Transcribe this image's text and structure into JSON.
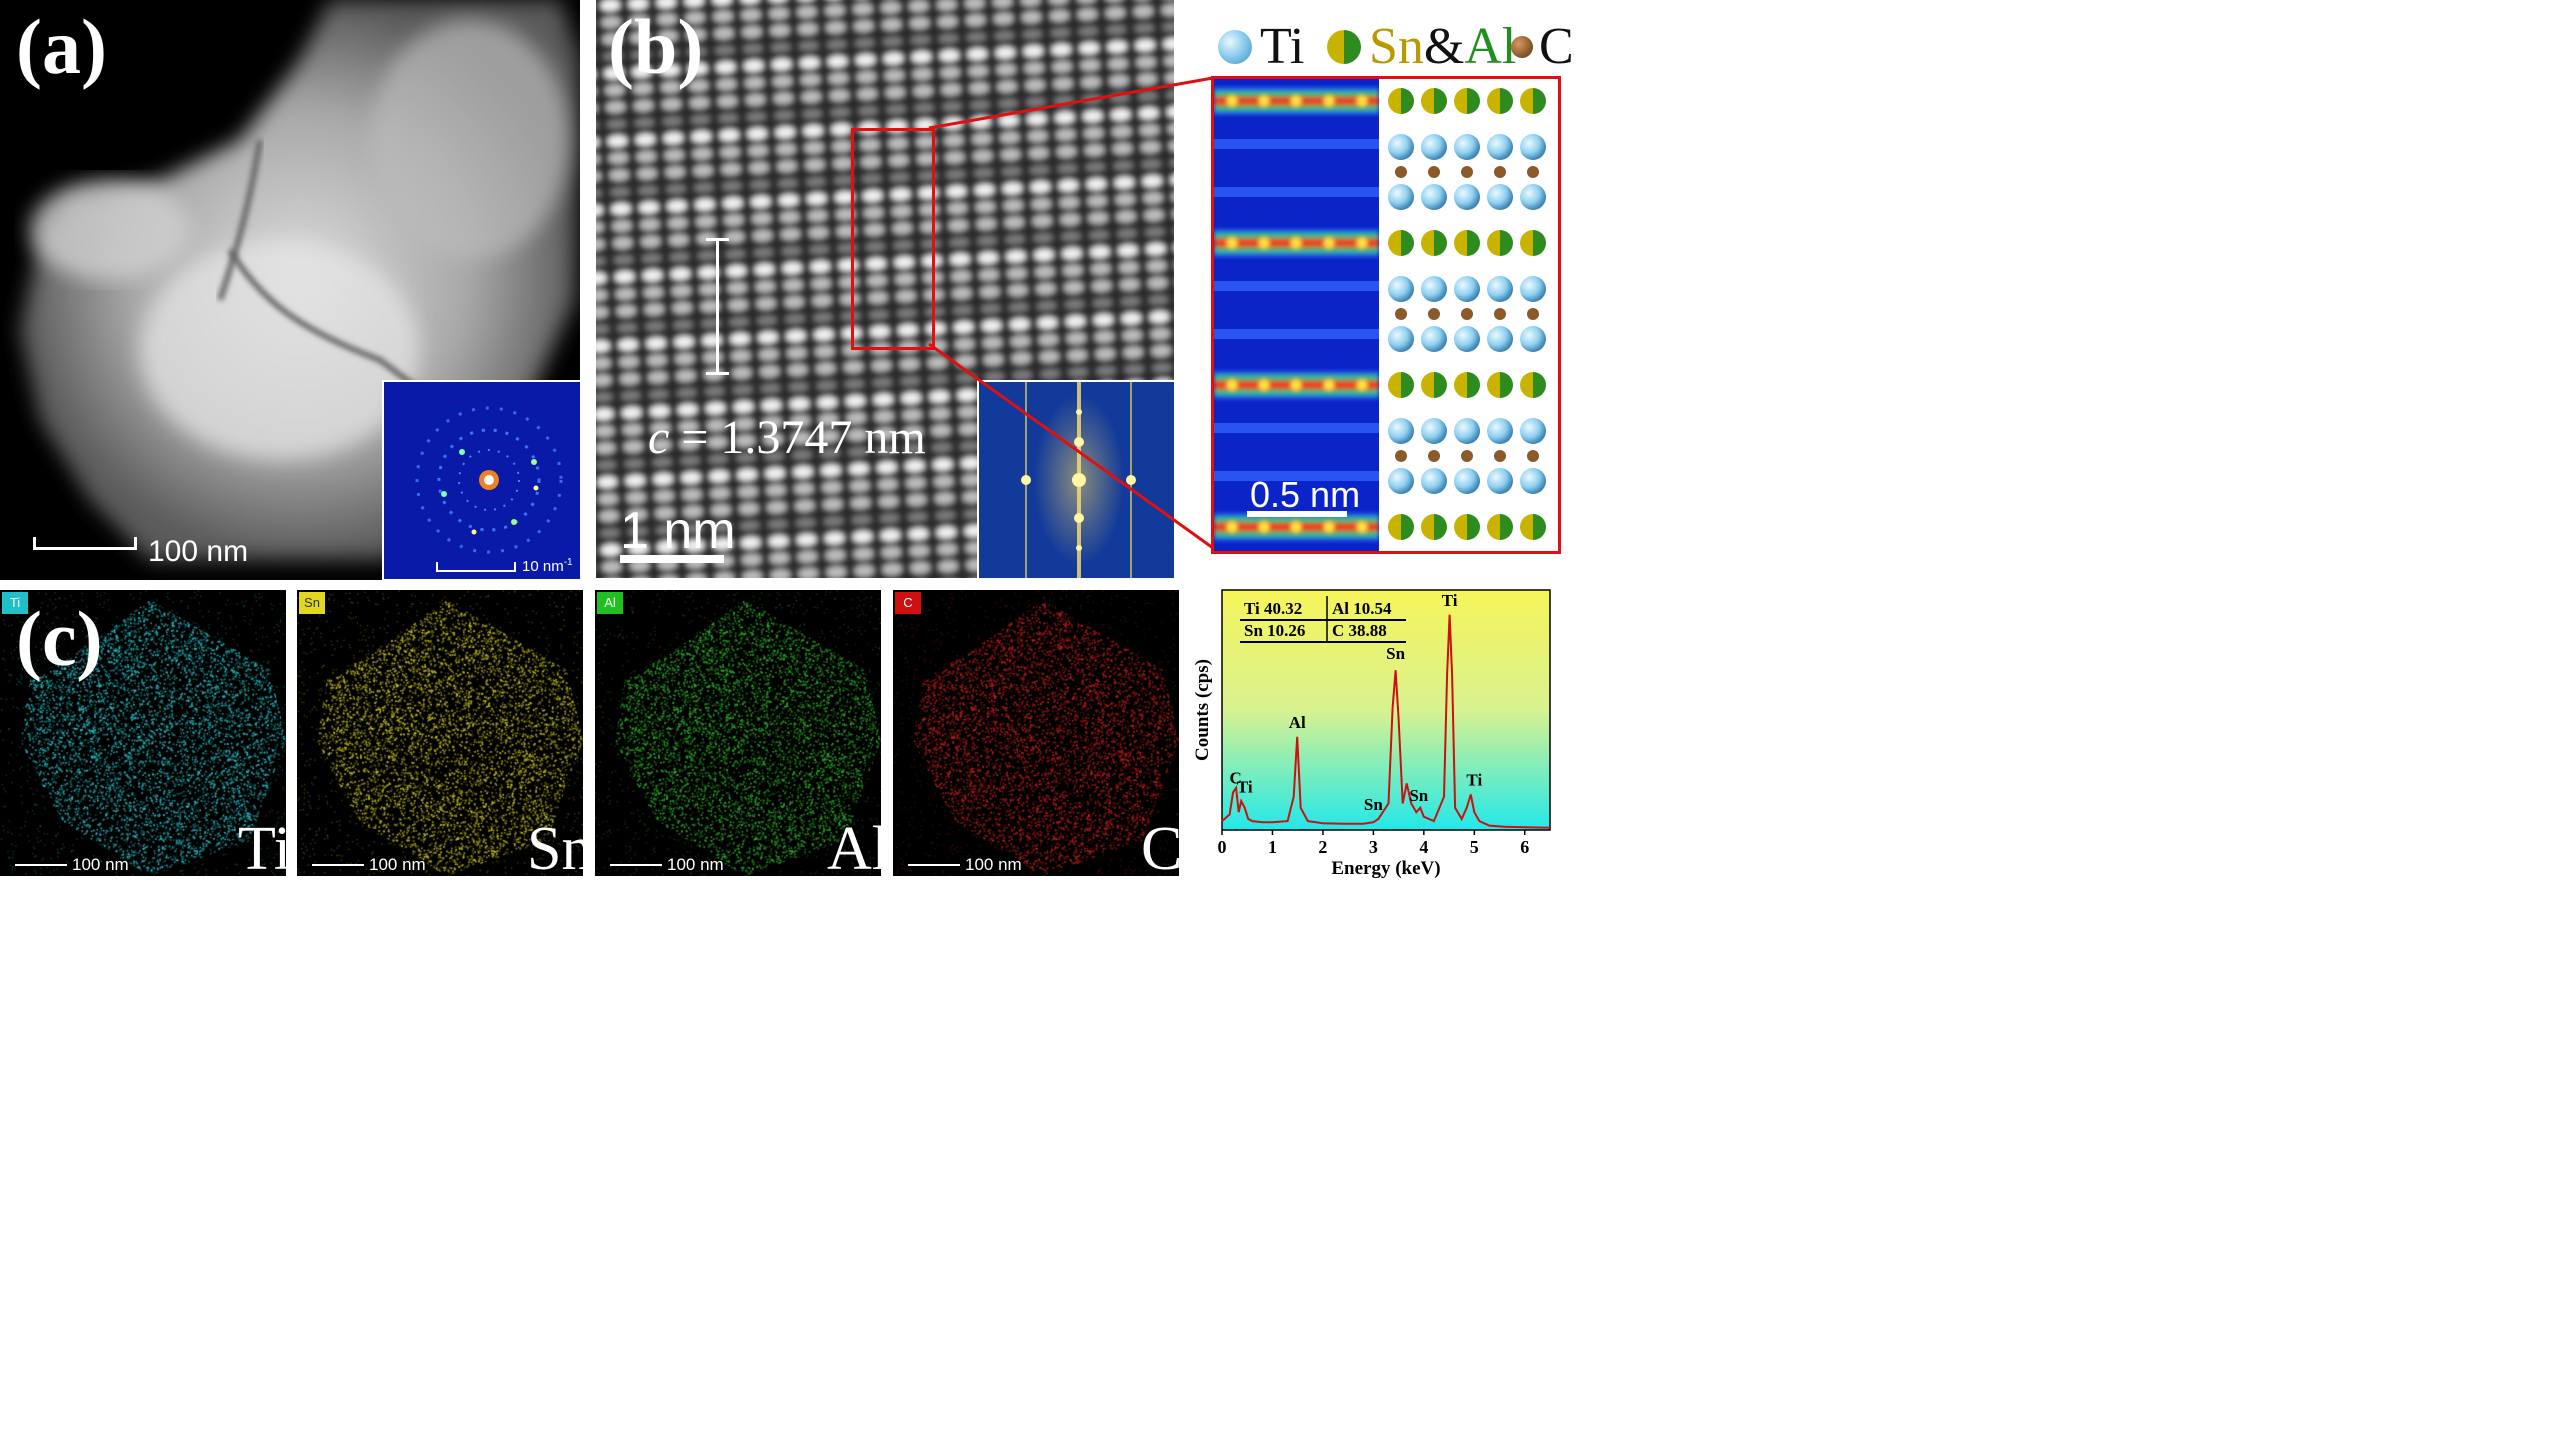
{
  "panels": {
    "a": {
      "letter": "(a)",
      "scale_bar": "100 nm",
      "inset_scale_bar": "10 nm",
      "inset_scale_sup": "-1"
    },
    "b": {
      "letter": "(b)",
      "lattice_param_symbol": "c",
      "lattice_param_value": "= 1.3747 nm",
      "scale_bar": "1 nm",
      "zoom_scale_bar": "0.5 nm",
      "legend": {
        "ti": "Ti",
        "sn": "Sn",
        "amp": "&",
        "al": "Al",
        "c": "C"
      },
      "colors": {
        "ti_atom": "#8fd0f0",
        "sn_atom": "#c8b400",
        "al_atom": "#2e8b20",
        "c_atom": "#8b5a2b",
        "frame": "#e01010"
      }
    },
    "c": {
      "letter": "(c)",
      "maps": [
        {
          "chip": "Ti",
          "label": "Ti",
          "scale_bar": "100 nm",
          "color": "#28c8d0"
        },
        {
          "chip": "Sn",
          "label": "Sn",
          "scale_bar": "100 nm",
          "color": "#d0c820"
        },
        {
          "chip": "Al",
          "label": "Al",
          "scale_bar": "100 nm",
          "color": "#30b830"
        },
        {
          "chip": "C",
          "label": "C",
          "scale_bar": "100 nm",
          "color": "#c82020"
        }
      ]
    }
  },
  "chart_data": {
    "type": "line",
    "xlabel": "Energy (keV)",
    "ylabel": "Counts (cps)",
    "xlim": [
      0,
      6.5
    ],
    "xticks": [
      "0",
      "1",
      "2",
      "3",
      "4",
      "5",
      "6"
    ],
    "composition_table": [
      [
        "Ti 40.32",
        "Al 10.54"
      ],
      [
        "Sn 10.26",
        "C 38.88"
      ]
    ],
    "series": [
      {
        "x": [
          0.0,
          0.15,
          0.22,
          0.28,
          0.33,
          0.38,
          0.45,
          0.52,
          0.6,
          0.8,
          1.0,
          1.3,
          1.42,
          1.49,
          1.56,
          1.7,
          2.0,
          2.4,
          2.8,
          3.0,
          3.1,
          3.3,
          3.38,
          3.44,
          3.5,
          3.58,
          3.66,
          3.75,
          3.85,
          3.93,
          4.0,
          4.2,
          4.4,
          4.46,
          4.51,
          4.56,
          4.62,
          4.75,
          4.85,
          4.93,
          5.0,
          5.1,
          5.3,
          5.6,
          6.0,
          6.5
        ],
        "y": [
          0.04,
          0.07,
          0.17,
          0.19,
          0.08,
          0.13,
          0.1,
          0.05,
          0.04,
          0.035,
          0.035,
          0.04,
          0.15,
          0.42,
          0.1,
          0.04,
          0.03,
          0.028,
          0.028,
          0.035,
          0.05,
          0.12,
          0.55,
          0.72,
          0.5,
          0.12,
          0.21,
          0.12,
          0.08,
          0.1,
          0.06,
          0.04,
          0.15,
          0.7,
          0.97,
          0.7,
          0.1,
          0.05,
          0.1,
          0.16,
          0.08,
          0.04,
          0.02,
          0.015,
          0.012,
          0.01
        ]
      }
    ],
    "peak_labels": [
      {
        "text": "C",
        "x": 0.27,
        "y": 0.21
      },
      {
        "text": "Ti",
        "x": 0.45,
        "y": 0.17
      },
      {
        "text": "Al",
        "x": 1.49,
        "y": 0.46
      },
      {
        "text": "Sn",
        "x": 3.0,
        "y": 0.09
      },
      {
        "text": "Sn",
        "x": 3.44,
        "y": 0.77
      },
      {
        "text": "Sn",
        "x": 3.9,
        "y": 0.13
      },
      {
        "text": "Ti",
        "x": 4.51,
        "y": 1.01
      },
      {
        "text": "Ti",
        "x": 5.0,
        "y": 0.2
      }
    ],
    "background_gradient": [
      "#f6f45a",
      "#d8f290",
      "#22e8ea"
    ],
    "line_color": "#cc1010"
  }
}
